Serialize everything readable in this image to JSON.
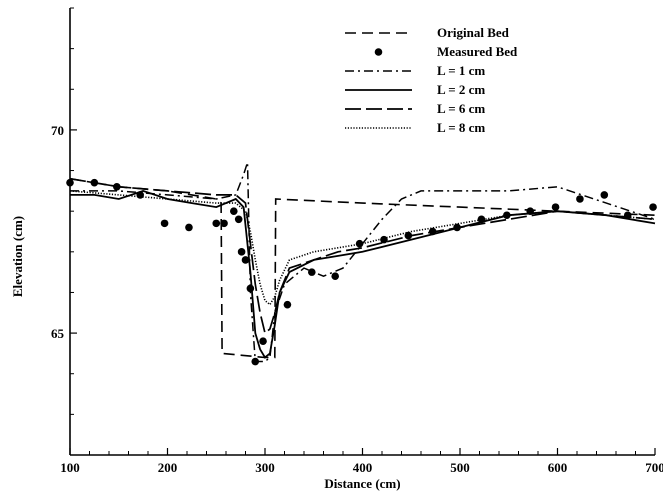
{
  "chart_data": {
    "type": "line",
    "xlabel": "Distance (cm)",
    "ylabel": "Elevation (cm)",
    "xlim": [
      100,
      700
    ],
    "ylim": [
      62,
      73
    ],
    "x_ticks": [
      100,
      200,
      300,
      400,
      500,
      600,
      700
    ],
    "y_ticks": [
      65,
      70
    ],
    "grid": false,
    "legend_position": "top-right",
    "series": [
      {
        "name": "Original Bed",
        "style": "dashed",
        "x": [
          100,
          150,
          200,
          250,
          255,
          256,
          300,
          310,
          311,
          400,
          500,
          600,
          700
        ],
        "y": [
          68.8,
          68.6,
          68.5,
          68.3,
          68.2,
          64.5,
          64.4,
          64.4,
          68.3,
          68.2,
          68.1,
          68.0,
          67.9
        ]
      },
      {
        "name": "Measured Bed",
        "style": "points",
        "x": [
          100,
          125,
          148,
          172,
          197,
          222,
          250,
          258,
          268,
          273,
          276,
          280,
          285,
          290,
          298,
          323,
          348,
          372,
          397,
          422,
          447,
          472,
          497,
          522,
          548,
          572,
          598,
          623,
          648,
          672,
          698
        ],
        "y": [
          68.7,
          68.7,
          68.6,
          68.4,
          67.7,
          67.6,
          67.7,
          67.7,
          68.0,
          67.8,
          67.0,
          66.8,
          66.1,
          64.3,
          64.8,
          65.7,
          66.5,
          66.4,
          67.2,
          67.3,
          67.4,
          67.5,
          67.6,
          67.8,
          67.9,
          68.0,
          68.1,
          68.3,
          68.4,
          67.9,
          68.1
        ]
      },
      {
        "name": "L = 1 cm",
        "style": "dashdot",
        "x": [
          100,
          150,
          200,
          250,
          270,
          278,
          282,
          285,
          290,
          300,
          305,
          310,
          320,
          340,
          360,
          380,
          400,
          420,
          440,
          460,
          480,
          500,
          550,
          600,
          650,
          700
        ],
        "y": [
          68.5,
          68.5,
          68.4,
          68.3,
          68.4,
          68.9,
          69.2,
          66.0,
          64.3,
          64.3,
          64.4,
          65.5,
          66.2,
          66.6,
          66.4,
          66.6,
          67.2,
          67.8,
          68.3,
          68.5,
          68.5,
          68.5,
          68.5,
          68.6,
          68.2,
          67.8
        ]
      },
      {
        "name": "L = 2 cm",
        "style": "solid",
        "x": [
          100,
          125,
          150,
          175,
          200,
          225,
          250,
          270,
          278,
          285,
          290,
          295,
          300,
          305,
          310,
          315,
          325,
          350,
          375,
          400,
          450,
          500,
          550,
          600,
          650,
          700
        ],
        "y": [
          68.4,
          68.4,
          68.3,
          68.5,
          68.3,
          68.2,
          68.1,
          68.3,
          68.1,
          66.5,
          65.0,
          64.6,
          64.4,
          64.5,
          65.2,
          66.0,
          66.5,
          66.8,
          66.9,
          67.0,
          67.3,
          67.6,
          67.9,
          68.0,
          67.9,
          67.7
        ]
      },
      {
        "name": "L = 6 cm",
        "style": "longdash",
        "x": [
          100,
          150,
          200,
          250,
          270,
          280,
          285,
          290,
          295,
          300,
          305,
          310,
          315,
          325,
          350,
          375,
          400,
          450,
          500,
          550,
          600,
          650,
          700
        ],
        "y": [
          68.8,
          68.6,
          68.5,
          68.4,
          68.4,
          68.2,
          67.2,
          66.2,
          65.5,
          65.0,
          65.1,
          65.5,
          66.0,
          66.6,
          66.8,
          67.0,
          67.1,
          67.4,
          67.6,
          67.8,
          68.0,
          67.9,
          67.8
        ]
      },
      {
        "name": "L = 8 cm",
        "style": "dotted",
        "x": [
          100,
          150,
          200,
          250,
          270,
          280,
          285,
          290,
          295,
          300,
          305,
          310,
          315,
          325,
          350,
          375,
          400,
          450,
          500,
          550,
          600,
          650,
          700
        ],
        "y": [
          68.5,
          68.4,
          68.3,
          68.2,
          68.2,
          68.0,
          67.5,
          66.8,
          66.2,
          65.8,
          65.7,
          65.9,
          66.3,
          66.8,
          67.0,
          67.1,
          67.2,
          67.5,
          67.7,
          67.9,
          68.0,
          67.9,
          67.8
        ]
      }
    ]
  }
}
